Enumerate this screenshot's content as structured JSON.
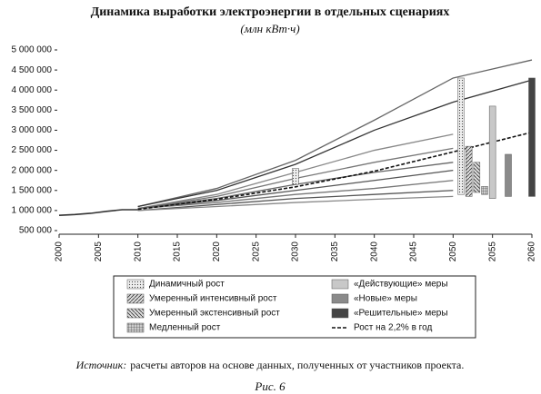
{
  "chart_data": {
    "type": "line",
    "title": "Динамика выработки электроэнергии в отдельных сценариях",
    "subtitle": "(млн кВт·ч)",
    "xlim": [
      2000,
      2060
    ],
    "xticks": [
      2000,
      2005,
      2010,
      2015,
      2020,
      2025,
      2030,
      2035,
      2040,
      2045,
      2050,
      2055,
      2060
    ],
    "ylim": [
      500000,
      5000000
    ],
    "yticks": [
      {
        "value": 500000,
        "label": "500 000"
      },
      {
        "value": 1000000,
        "label": "1 000 000"
      },
      {
        "value": 1500000,
        "label": "1 500 000"
      },
      {
        "value": 2000000,
        "label": "2 000 000"
      },
      {
        "value": 2500000,
        "label": "2 500 000"
      },
      {
        "value": 3000000,
        "label": "3 000 000"
      },
      {
        "value": 3500000,
        "label": "3 500 000"
      },
      {
        "value": 4000000,
        "label": "4 000 000"
      },
      {
        "value": 4500000,
        "label": "4 500 000"
      },
      {
        "value": 5000000,
        "label": "5 000 000"
      }
    ],
    "history": {
      "color": "#333333",
      "x": [
        2000,
        2002,
        2004,
        2006,
        2008,
        2010
      ],
      "values": [
        880000,
        900000,
        930000,
        980000,
        1020000,
        1020000
      ]
    },
    "lines": [
      {
        "color": "#666666",
        "x": [
          2010,
          2020,
          2030,
          2040,
          2050,
          2060
        ],
        "values": [
          1100000,
          1550000,
          2250000,
          3250000,
          4300000,
          4750000
        ]
      },
      {
        "color": "#333333",
        "x": [
          2010,
          2020,
          2030,
          2040,
          2050,
          2060
        ],
        "values": [
          1100000,
          1500000,
          2150000,
          3000000,
          3700000,
          4250000
        ]
      },
      {
        "color": "#888888",
        "x": [
          2010,
          2020,
          2030,
          2040,
          2050
        ],
        "values": [
          1050000,
          1400000,
          1950000,
          2500000,
          2900000
        ]
      },
      {
        "color": "#777777",
        "x": [
          2010,
          2020,
          2030,
          2040,
          2050
        ],
        "values": [
          1050000,
          1350000,
          1800000,
          2200000,
          2550000
        ]
      },
      {
        "color": "#666666",
        "x": [
          2010,
          2020,
          2030,
          2040,
          2050
        ],
        "values": [
          1050000,
          1300000,
          1650000,
          1950000,
          2200000
        ]
      },
      {
        "color": "#555555",
        "x": [
          2010,
          2020,
          2030,
          2040,
          2050
        ],
        "values": [
          1050000,
          1250000,
          1500000,
          1750000,
          2000000
        ]
      },
      {
        "color": "#777777",
        "x": [
          2010,
          2020,
          2030,
          2040,
          2050
        ],
        "values": [
          1050000,
          1200000,
          1400000,
          1550000,
          1750000
        ]
      },
      {
        "color": "#555555",
        "x": [
          2010,
          2020,
          2030,
          2040,
          2050
        ],
        "values": [
          1000000,
          1150000,
          1300000,
          1400000,
          1500000
        ]
      },
      {
        "color": "#888888",
        "x": [
          2010,
          2020,
          2030,
          2040,
          2050
        ],
        "values": [
          1000000,
          1100000,
          1200000,
          1280000,
          1350000
        ]
      }
    ],
    "trend": {
      "name": "Рост на 2,2% в год",
      "color": "#111111",
      "x": [
        2010,
        2020,
        2030,
        2040,
        2050,
        2060
      ],
      "values": [
        1030000,
        1280000,
        1590000,
        1980000,
        2460000,
        2950000
      ]
    },
    "ranges": [
      {
        "name": "Динамичный рост",
        "pattern": "dots",
        "x": [
          2030,
          2051
        ],
        "low": [
          1650000,
          1400000
        ],
        "high": [
          2050000,
          4300000
        ]
      },
      {
        "name": "Умеренный интенсивный рост",
        "pattern": "hatch",
        "x": [
          2052
        ],
        "low": [
          1350000
        ],
        "high": [
          2600000
        ]
      },
      {
        "name": "Умеренный экстенсивный рост",
        "pattern": "backhatch",
        "x": [
          2053
        ],
        "low": [
          1450000
        ],
        "high": [
          2200000
        ]
      },
      {
        "name": "Медленный рост",
        "pattern": "grid",
        "x": [
          2054
        ],
        "low": [
          1400000
        ],
        "high": [
          1600000
        ]
      },
      {
        "name": "«Действующие» меры",
        "pattern": "light",
        "x": [
          2055
        ],
        "low": [
          1300000
        ],
        "high": [
          3600000
        ]
      },
      {
        "name": "«Новые» меры",
        "pattern": "medium",
        "x": [
          2057
        ],
        "low": [
          1350000
        ],
        "high": [
          2400000
        ]
      },
      {
        "name": "«Решительные» меры",
        "pattern": "dark",
        "x": [
          2060
        ],
        "low": [
          1350000
        ],
        "high": [
          4300000
        ]
      }
    ],
    "source_label": "Источник:",
    "source": "расчеты авторов на основе данных, полученных от участников проекта.",
    "caption": "Рис. 6"
  }
}
